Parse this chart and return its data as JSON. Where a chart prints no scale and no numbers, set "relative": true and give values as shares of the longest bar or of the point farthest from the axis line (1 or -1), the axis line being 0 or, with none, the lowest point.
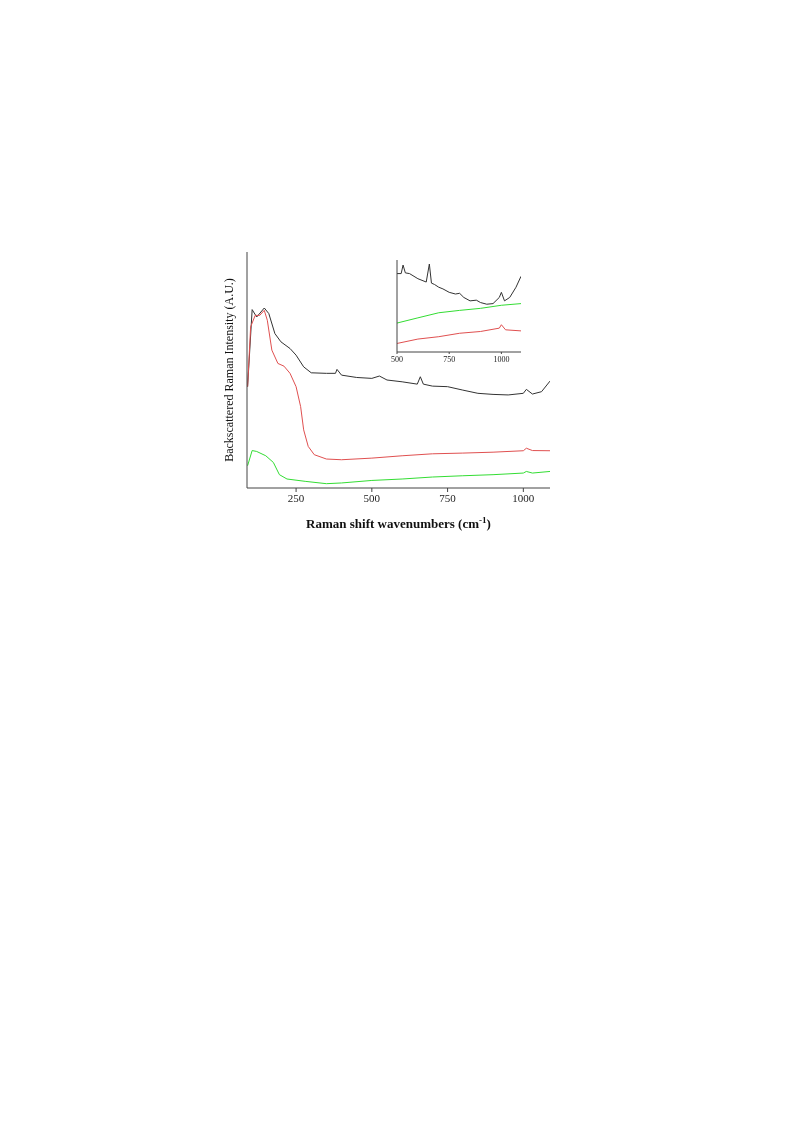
{
  "chart_data": [
    {
      "type": "line",
      "xlabel": "Raman shift wavenumbers (cm$^{-1}$)",
      "ylabel": "Backscattered Raman Intensity (A.U.)",
      "relative": true,
      "xlim": [
        88,
        1088
      ],
      "xticks": [
        250,
        500,
        750,
        1000
      ],
      "tick_labels": "x",
      "grid": false,
      "legend": false,
      "marker": "none",
      "line_style": "solid",
      "series": [
        {
          "color": "#333333",
          "x": [
            90,
            105,
            120,
            145,
            160,
            180,
            200,
            230,
            250,
            275,
            300,
            350,
            380,
            385,
            400,
            450,
            500,
            525,
            550,
            600,
            650,
            660,
            670,
            700,
            750,
            800,
            850,
            900,
            950,
            1000,
            1010,
            1030,
            1060,
            1088
          ],
          "values": [
            0.563,
            0.991,
            0.95,
            1.0,
            0.969,
            0.858,
            0.812,
            0.775,
            0.738,
            0.673,
            0.64,
            0.637,
            0.637,
            0.659,
            0.627,
            0.614,
            0.609,
            0.622,
            0.6,
            0.59,
            0.577,
            0.618,
            0.577,
            0.566,
            0.563,
            0.544,
            0.526,
            0.52,
            0.517,
            0.526,
            0.548,
            0.522,
            0.535,
            0.594
          ]
        },
        {
          "color": "#e05050",
          "x": [
            90,
            100,
            115,
            130,
            145,
            155,
            170,
            190,
            210,
            230,
            250,
            265,
            275,
            290,
            310,
            350,
            400,
            500,
            600,
            700,
            800,
            900,
            1000,
            1010,
            1030,
            1088
          ],
          "values": [
            0.563,
            0.895,
            0.959,
            0.959,
            0.987,
            0.932,
            0.766,
            0.692,
            0.677,
            0.637,
            0.563,
            0.452,
            0.323,
            0.231,
            0.185,
            0.161,
            0.157,
            0.166,
            0.179,
            0.19,
            0.194,
            0.199,
            0.207,
            0.221,
            0.208,
            0.207
          ]
        },
        {
          "color": "#33dd33",
          "x": [
            90,
            105,
            120,
            150,
            175,
            195,
            220,
            280,
            350,
            400,
            500,
            600,
            700,
            800,
            900,
            1000,
            1010,
            1030,
            1088
          ],
          "values": [
            0.124,
            0.208,
            0.203,
            0.179,
            0.142,
            0.074,
            0.05,
            0.037,
            0.024,
            0.028,
            0.042,
            0.05,
            0.061,
            0.068,
            0.074,
            0.083,
            0.092,
            0.083,
            0.092
          ]
        }
      ]
    },
    {
      "type": "line",
      "relative": true,
      "xlim": [
        500,
        1094
      ],
      "xticks": [
        500,
        750,
        1000
      ],
      "tick_labels": "x",
      "grid": false,
      "legend": false,
      "marker": "none",
      "line_style": "solid",
      "series": [
        {
          "color": "#333333",
          "x": [
            500,
            520,
            529,
            540,
            560,
            600,
            640,
            655,
            665,
            680,
            700,
            720,
            750,
            780,
            800,
            820,
            850,
            880,
            900,
            930,
            960,
            990,
            1000,
            1015,
            1040,
            1070,
            1094
          ],
          "values": [
            0.891,
            0.891,
            0.988,
            0.899,
            0.891,
            0.833,
            0.795,
            1.0,
            0.783,
            0.767,
            0.736,
            0.717,
            0.678,
            0.659,
            0.667,
            0.62,
            0.581,
            0.589,
            0.562,
            0.543,
            0.55,
            0.62,
            0.678,
            0.581,
            0.62,
            0.736,
            0.86
          ]
        },
        {
          "color": "#33dd33",
          "x": [
            500,
            600,
            700,
            800,
            900,
            1000,
            1094
          ],
          "values": [
            0.329,
            0.388,
            0.446,
            0.473,
            0.496,
            0.531,
            0.55
          ]
        },
        {
          "color": "#e05050",
          "x": [
            500,
            600,
            700,
            800,
            900,
            990,
            1000,
            1020,
            1094
          ],
          "values": [
            0.097,
            0.147,
            0.174,
            0.213,
            0.233,
            0.271,
            0.31,
            0.252,
            0.24
          ]
        }
      ]
    }
  ]
}
